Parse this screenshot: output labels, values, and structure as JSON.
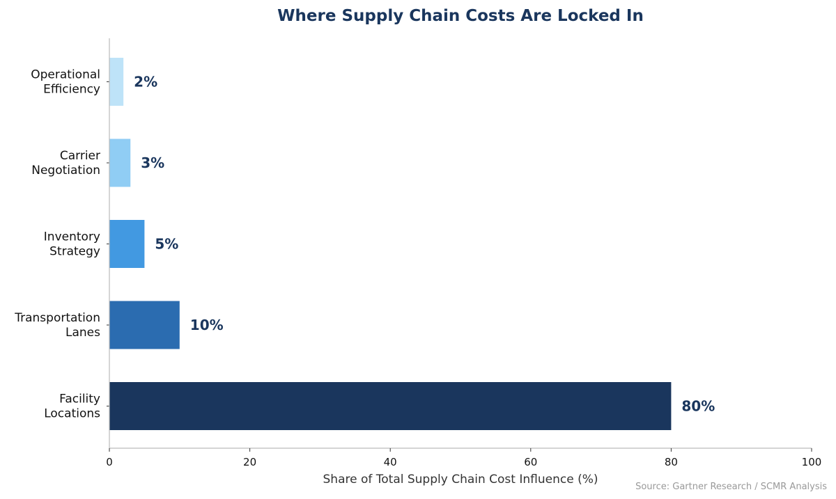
{
  "chart_data": {
    "type": "bar",
    "orientation": "horizontal",
    "title": "Where Supply Chain Costs Are Locked In",
    "xlabel": "Share of Total Supply Chain Cost Influence (%)",
    "ylabel": "",
    "categories": [
      [
        "Operational",
        "Efficiency"
      ],
      [
        "Carrier",
        "Negotiation"
      ],
      [
        "Inventory",
        "Strategy"
      ],
      [
        "Transportation",
        "Lanes"
      ],
      [
        "Facility",
        "Locations"
      ]
    ],
    "values": [
      2,
      3,
      5,
      10,
      80
    ],
    "data_labels": [
      "2%",
      "3%",
      "5%",
      "10%",
      "80%"
    ],
    "colors": [
      "#bee3f8",
      "#90cdf4",
      "#4299e1",
      "#2b6cb0",
      "#1a365d"
    ],
    "xlim": [
      0,
      100
    ],
    "xticks": [
      0,
      20,
      40,
      60,
      80,
      100
    ],
    "grid": false,
    "source": "Source: Gartner Research / SCMR Analysis"
  }
}
